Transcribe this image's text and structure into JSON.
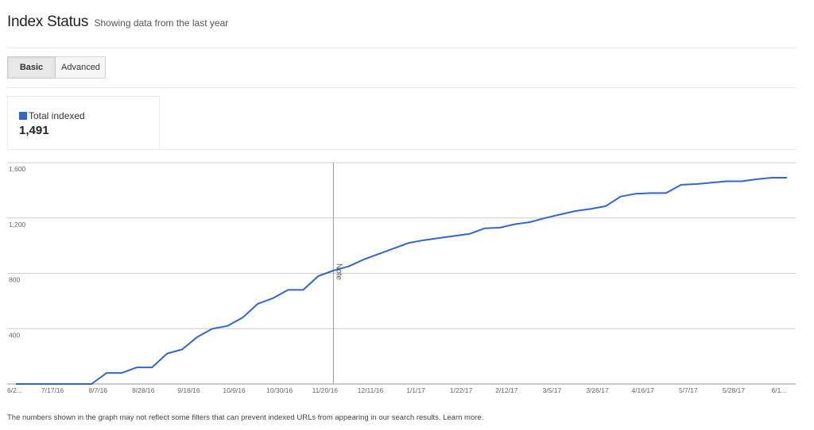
{
  "header": {
    "title": "Index Status",
    "subtitle": "Showing data from the last year"
  },
  "tabs": [
    {
      "label": "Basic",
      "active": true
    },
    {
      "label": "Advanced",
      "active": false
    }
  ],
  "metric": {
    "label": "Total indexed",
    "value": "1,491",
    "color": "#3366cc"
  },
  "footer": {
    "text": "The numbers shown in the graph may not reflect some filters that can prevent indexed URLs from appearing in our search results.",
    "link": "Learn more."
  },
  "chart_data": {
    "type": "line",
    "ylim": [
      0,
      1600
    ],
    "yticks": [
      400,
      800,
      1200,
      1600
    ],
    "ytick_labels": [
      "400",
      "800",
      "1,200",
      "1,600"
    ],
    "x_labels": [
      "6/2...",
      "7/17/16",
      "8/7/16",
      "8/28/16",
      "9/18/16",
      "10/9/16",
      "10/30/16",
      "11/20/16",
      "12/11/16",
      "1/1/17",
      "1/22/17",
      "2/12/17",
      "3/5/17",
      "3/26/17",
      "4/16/17",
      "5/7/17",
      "5/28/17",
      "6/1..."
    ],
    "annotation": {
      "label": "Note",
      "at_point": 21
    },
    "grid": true,
    "series": [
      {
        "name": "Total indexed",
        "color": "#3366cc",
        "values": [
          0,
          0,
          0,
          0,
          0,
          0,
          80,
          80,
          120,
          120,
          220,
          250,
          340,
          400,
          420,
          480,
          580,
          620,
          680,
          680,
          780,
          820,
          850,
          900,
          940,
          980,
          1020,
          1040,
          1055,
          1070,
          1085,
          1125,
          1130,
          1155,
          1170,
          1200,
          1225,
          1250,
          1265,
          1285,
          1355,
          1375,
          1380,
          1380,
          1440,
          1445,
          1455,
          1465,
          1465,
          1480,
          1491,
          1491
        ]
      }
    ]
  }
}
